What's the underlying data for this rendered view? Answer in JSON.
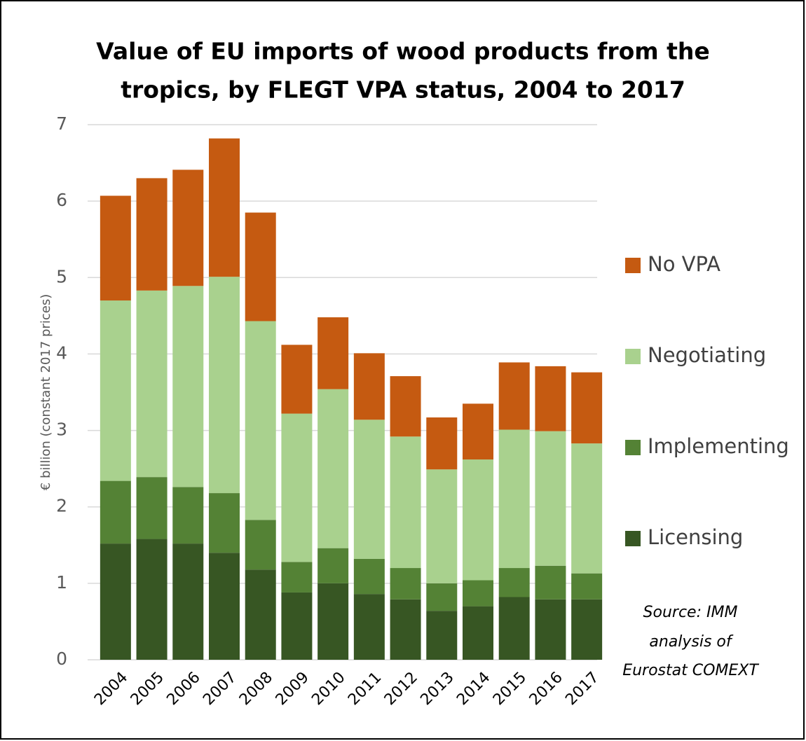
{
  "chart_data": {
    "type": "stacked_bar",
    "title": [
      "Value of EU imports of wood products from the",
      "tropics, by FLEGT VPA status, 2004 to 2017"
    ],
    "y_label": "€ billion (constant 2017 prices)",
    "categories": [
      "2004",
      "2005",
      "2006",
      "2007",
      "2008",
      "2009",
      "2010",
      "2011",
      "2012",
      "2013",
      "2014",
      "2015",
      "2016",
      "2017"
    ],
    "series": [
      {
        "name": "Licensing",
        "color": "#375623",
        "values": [
          1.52,
          1.58,
          1.52,
          1.4,
          1.18,
          0.88,
          1.0,
          0.86,
          0.79,
          0.64,
          0.7,
          0.82,
          0.79,
          0.79
        ]
      },
      {
        "name": "Implementing",
        "color": "#548235",
        "values": [
          0.82,
          0.81,
          0.74,
          0.78,
          0.65,
          0.4,
          0.46,
          0.46,
          0.41,
          0.36,
          0.34,
          0.38,
          0.44,
          0.34
        ]
      },
      {
        "name": "Negotiating",
        "color": "#a9d18e",
        "values": [
          2.36,
          2.44,
          2.63,
          2.83,
          2.6,
          1.94,
          2.08,
          1.82,
          1.72,
          1.49,
          1.58,
          1.81,
          1.76,
          1.7
        ]
      },
      {
        "name": "No VPA",
        "color": "#c55a11",
        "values": [
          1.37,
          1.47,
          1.52,
          1.81,
          1.42,
          0.9,
          0.94,
          0.87,
          0.79,
          0.68,
          0.73,
          0.88,
          0.85,
          0.93
        ]
      }
    ],
    "ylim": [
      0,
      7
    ],
    "yticks": [
      0,
      1,
      2,
      3,
      4,
      5,
      6,
      7
    ],
    "grid": true,
    "legend": "right",
    "source": [
      "Source: IMM",
      "analysis of",
      "Eurostat COMEXT"
    ]
  }
}
